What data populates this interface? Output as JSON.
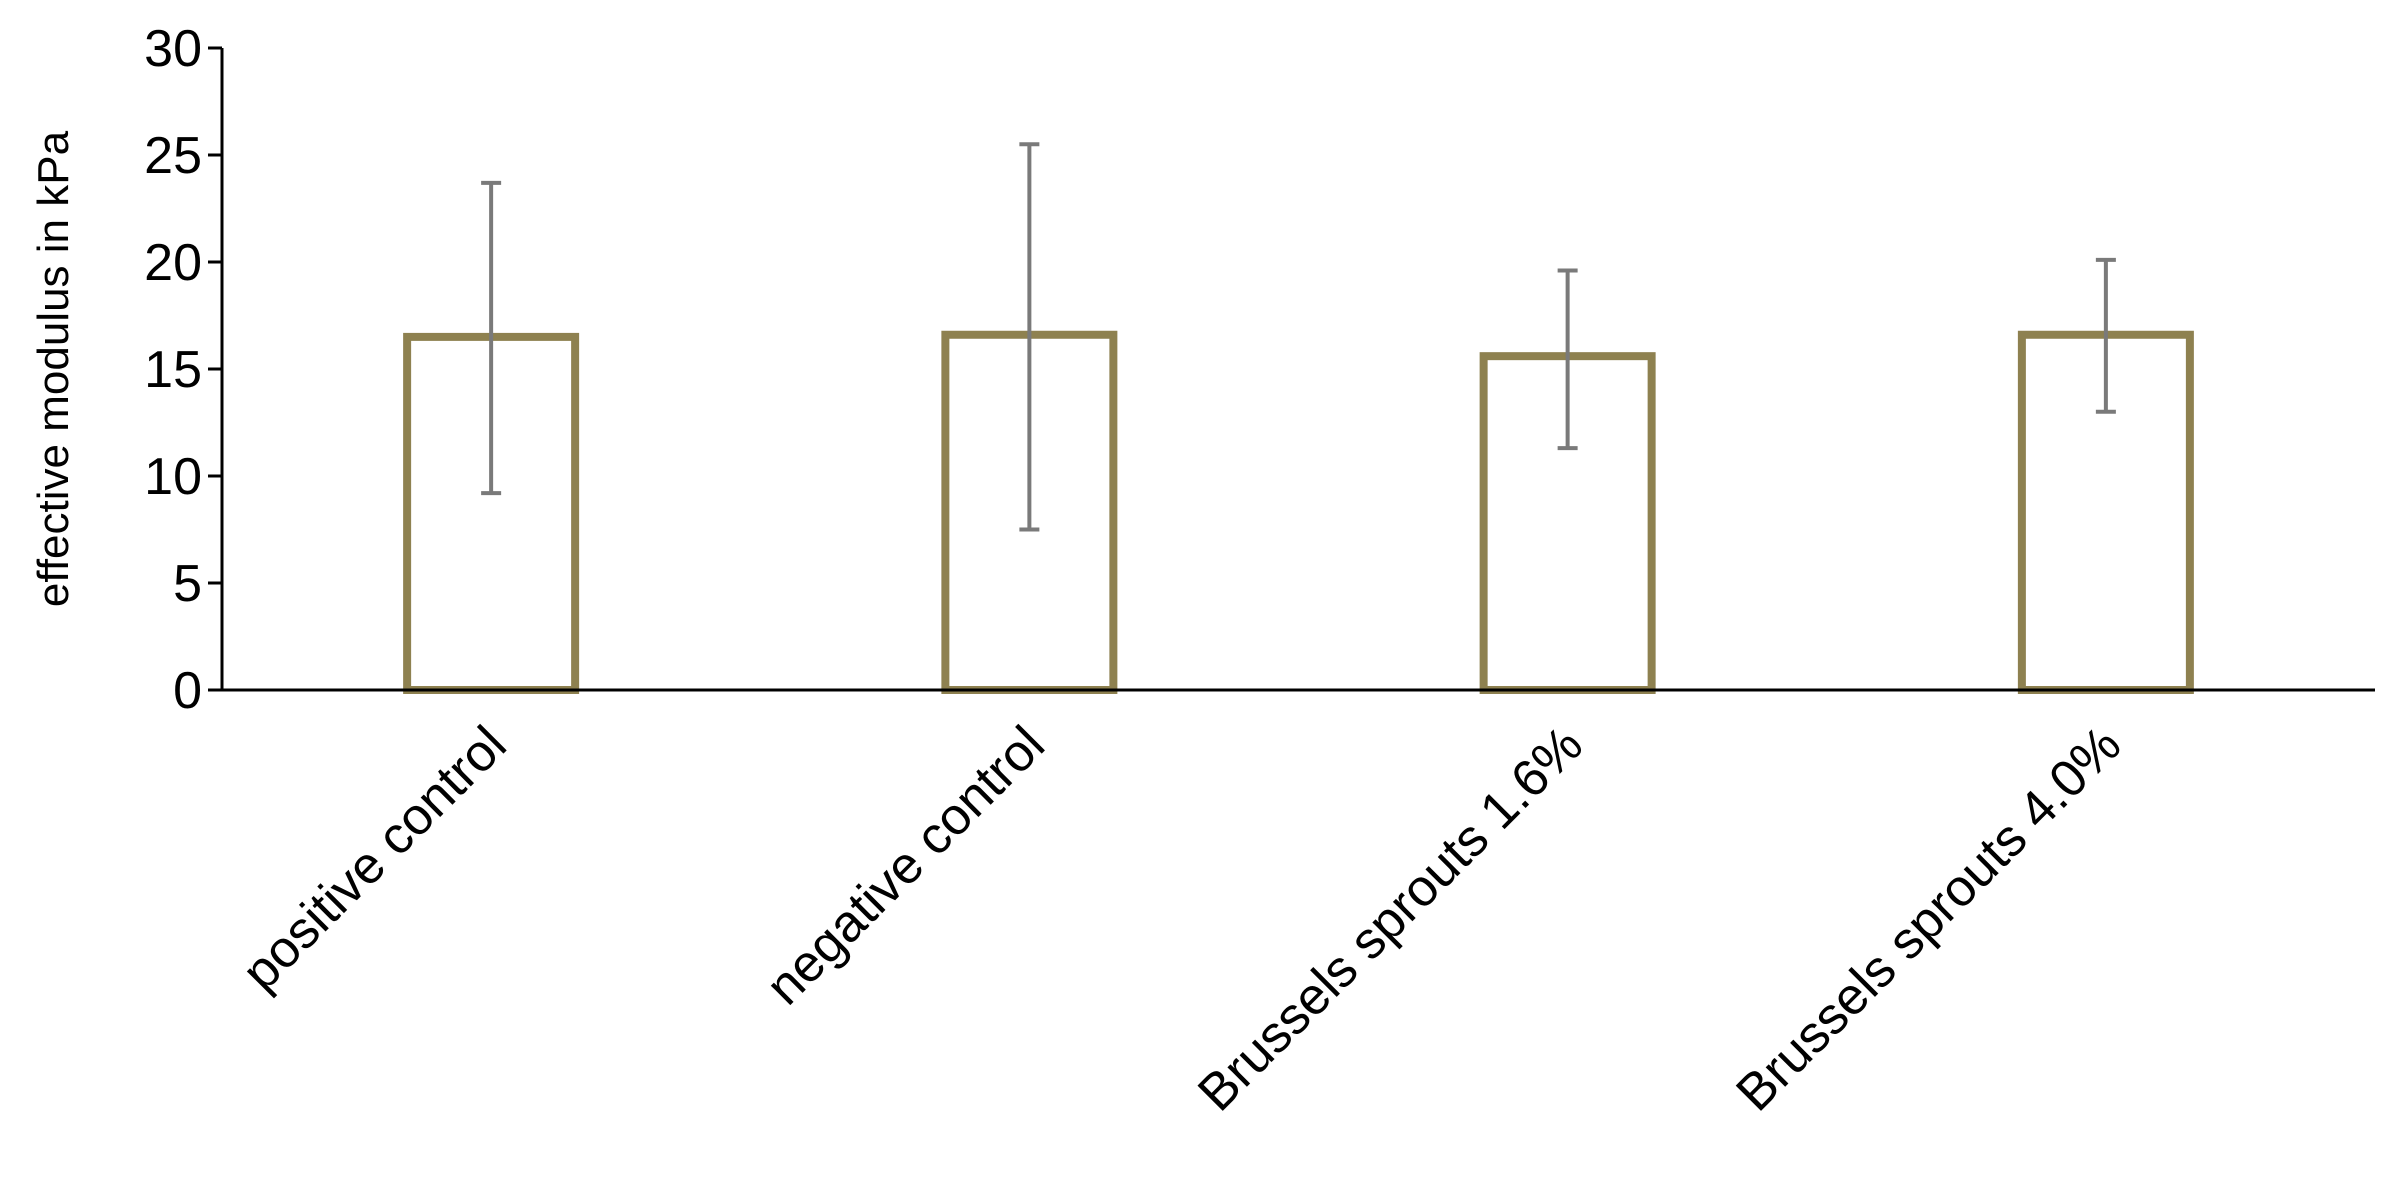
{
  "chart_data": {
    "type": "bar",
    "title": "",
    "xlabel": "",
    "ylabel": "effective modulus in kPa",
    "ylim": [
      0,
      30
    ],
    "yticks": [
      0,
      5,
      10,
      15,
      20,
      25,
      30
    ],
    "categories": [
      "positive control",
      "negative control",
      "Brussels sprouts 1.6%",
      "Brussels sprouts 4.0%"
    ],
    "values": [
      16.5,
      16.6,
      15.6,
      16.6
    ],
    "error_bars": [
      {
        "low": 9.2,
        "high": 23.7
      },
      {
        "low": 7.5,
        "high": 25.5
      },
      {
        "low": 11.3,
        "high": 19.6
      },
      {
        "low": 13.0,
        "high": 20.1
      }
    ],
    "grid": false,
    "legend": "none",
    "colors": {
      "bar_outline": "#8e8150",
      "bar_fill": "#ffffff",
      "error_bar": "#7a7a7a",
      "axis": "#000000"
    }
  }
}
